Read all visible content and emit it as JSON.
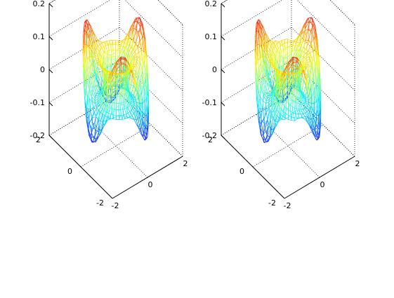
{
  "chart_data": [
    {
      "type": "surface",
      "title": "",
      "xlabel": "",
      "ylabel": "",
      "zlabel": "",
      "xlim": [
        -2,
        2
      ],
      "ylim": [
        -2,
        2
      ],
      "zlim": [
        -0.2,
        0.2
      ],
      "x_ticks": [
        "-2",
        "0",
        "2"
      ],
      "y_ticks": [
        "-2",
        "0",
        "2"
      ],
      "z_ticks": [
        "-0.2",
        "-0.1",
        "0",
        "0.1",
        "0.2"
      ],
      "colormap": "jet",
      "grid": "dotted",
      "surface": "wireframe torus-shaped mesh with 3 positive peaks reaching about 0.2 and 2 negative troughs reaching about -0.2"
    },
    {
      "type": "surface",
      "title": "",
      "xlabel": "",
      "ylabel": "",
      "zlabel": "",
      "xlim": [
        -2,
        2
      ],
      "ylim": [
        -2,
        2
      ],
      "zlim": [
        -0.2,
        0.2
      ],
      "x_ticks": [
        "-2",
        "0",
        "2"
      ],
      "y_ticks": [
        "-2",
        "0",
        "2"
      ],
      "z_ticks": [
        "-0.2",
        "-0.1",
        "0",
        "0.1",
        "0.2"
      ],
      "colormap": "jet",
      "grid": "dotted",
      "surface": "wireframe twisted torus mesh with 3 positive peaks reaching about 0.2 and 2 negative troughs reaching about -0.2"
    }
  ],
  "colors": {
    "background": "#ffffff",
    "axes": "#000000",
    "grid": "#000000"
  }
}
